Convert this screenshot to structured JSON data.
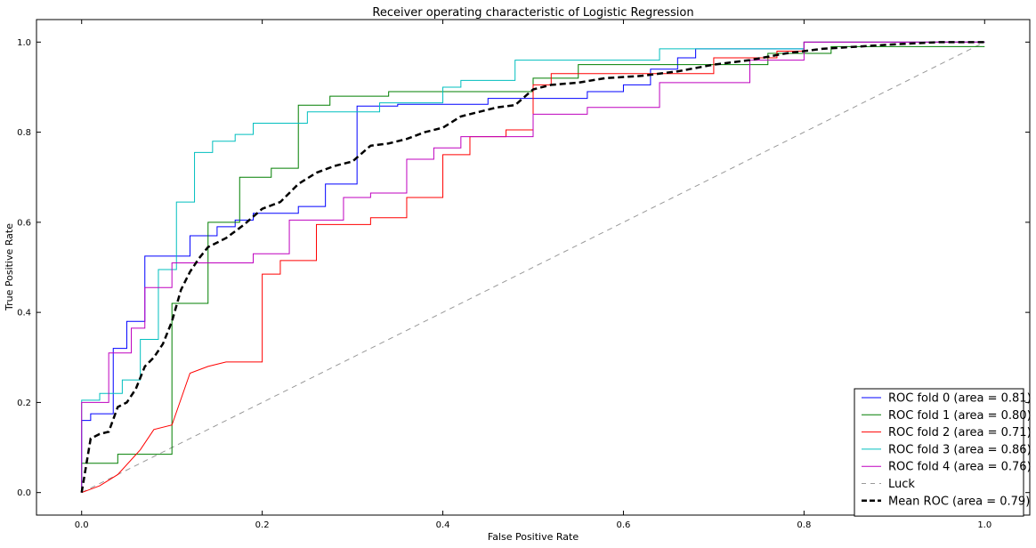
{
  "chart_data": {
    "type": "line",
    "title": "Receiver operating characteristic of Logistic Regression",
    "xlabel": "False Positive Rate",
    "ylabel": "True Positive Rate",
    "xlim": [
      -0.05,
      1.05
    ],
    "ylim": [
      -0.05,
      1.05
    ],
    "x_ticks": [
      "0.0",
      "0.2",
      "0.4",
      "0.6",
      "0.8",
      "1.0"
    ],
    "y_ticks": [
      "0.0",
      "0.2",
      "0.4",
      "0.6",
      "0.8",
      "1.0"
    ],
    "grid": false,
    "legend_position": "lower-right",
    "series": [
      {
        "name": "ROC fold 0 (area = 0.81)",
        "color": "#0000ff",
        "style": "step",
        "x": [
          0,
          0,
          0.01,
          0.01,
          0.02,
          0.02,
          0.035,
          0.035,
          0.05,
          0.05,
          0.07,
          0.07,
          0.12,
          0.12,
          0.15,
          0.15,
          0.17,
          0.17,
          0.19,
          0.19,
          0.24,
          0.24,
          0.27,
          0.27,
          0.305,
          0.305,
          0.35,
          0.35,
          0.45,
          0.45,
          0.56,
          0.56,
          0.6,
          0.6,
          0.63,
          0.63,
          0.66,
          0.66,
          0.68,
          0.68,
          0.77,
          0.77,
          0.8,
          0.8,
          1.0
        ],
        "y": [
          0,
          0.16,
          0.16,
          0.175,
          0.175,
          0.175,
          0.175,
          0.32,
          0.32,
          0.38,
          0.38,
          0.525,
          0.525,
          0.57,
          0.57,
          0.59,
          0.59,
          0.605,
          0.605,
          0.62,
          0.62,
          0.635,
          0.635,
          0.685,
          0.685,
          0.858,
          0.858,
          0.862,
          0.862,
          0.875,
          0.875,
          0.89,
          0.89,
          0.905,
          0.905,
          0.94,
          0.94,
          0.965,
          0.965,
          0.985,
          0.985,
          0.985,
          0.985,
          1.0,
          1.0
        ]
      },
      {
        "name": "ROC fold 1 (area = 0.80)",
        "color": "#007f00",
        "style": "step",
        "x": [
          0,
          0,
          0.04,
          0.04,
          0.07,
          0.07,
          0.1,
          0.1,
          0.14,
          0.14,
          0.175,
          0.175,
          0.21,
          0.21,
          0.24,
          0.24,
          0.275,
          0.275,
          0.34,
          0.34,
          0.5,
          0.5,
          0.55,
          0.55,
          0.7,
          0.7,
          0.76,
          0.76,
          0.83,
          0.83,
          1.0
        ],
        "y": [
          0,
          0.065,
          0.065,
          0.085,
          0.085,
          0.085,
          0.085,
          0.42,
          0.42,
          0.6,
          0.6,
          0.7,
          0.7,
          0.72,
          0.72,
          0.86,
          0.86,
          0.88,
          0.88,
          0.89,
          0.89,
          0.92,
          0.92,
          0.95,
          0.95,
          0.95,
          0.95,
          0.975,
          0.975,
          0.99,
          0.99
        ]
      },
      {
        "name": "ROC fold 2 (area = 0.71)",
        "color": "#ff0000",
        "style": "step",
        "x": [
          0,
          0,
          0.02,
          0.02,
          0.04,
          0.04,
          0.065,
          0.065,
          0.08,
          0.08,
          0.1,
          0.1,
          0.12,
          0.12,
          0.14,
          0.14,
          0.16,
          0.16,
          0.2,
          0.2,
          0.22,
          0.22,
          0.26,
          0.26,
          0.32,
          0.32,
          0.36,
          0.36,
          0.4,
          0.4,
          0.43,
          0.43,
          0.47,
          0.47,
          0.5,
          0.5,
          0.52,
          0.52,
          0.7,
          0.7,
          0.77,
          0.77,
          0.8,
          0.8,
          1.0
        ],
        "y": [
          0,
          0,
          0.015,
          0.015,
          0.04,
          0.04,
          0.095,
          0.095,
          0.14,
          0.14,
          0.15,
          0.15,
          0.265,
          0.265,
          0.28,
          0.28,
          0.29,
          0.29,
          0.29,
          0.485,
          0.485,
          0.515,
          0.515,
          0.595,
          0.595,
          0.61,
          0.61,
          0.655,
          0.655,
          0.75,
          0.75,
          0.79,
          0.79,
          0.805,
          0.805,
          0.905,
          0.905,
          0.93,
          0.93,
          0.965,
          0.965,
          0.98,
          0.98,
          1.0,
          1.0
        ]
      },
      {
        "name": "ROC fold 3 (area = 0.86)",
        "color": "#00bfbf",
        "style": "step",
        "x": [
          0,
          0,
          0.02,
          0.02,
          0.045,
          0.045,
          0.065,
          0.065,
          0.085,
          0.085,
          0.105,
          0.105,
          0.125,
          0.125,
          0.145,
          0.145,
          0.17,
          0.17,
          0.19,
          0.19,
          0.25,
          0.25,
          0.33,
          0.33,
          0.4,
          0.4,
          0.42,
          0.42,
          0.48,
          0.48,
          0.64,
          0.64,
          0.8,
          0.8,
          1.0
        ],
        "y": [
          0,
          0.205,
          0.205,
          0.22,
          0.22,
          0.25,
          0.25,
          0.34,
          0.34,
          0.495,
          0.495,
          0.645,
          0.645,
          0.755,
          0.755,
          0.78,
          0.78,
          0.795,
          0.795,
          0.82,
          0.82,
          0.845,
          0.845,
          0.865,
          0.865,
          0.9,
          0.9,
          0.915,
          0.915,
          0.96,
          0.96,
          0.985,
          0.985,
          1.0,
          1.0
        ]
      },
      {
        "name": "ROC fold 4 (area = 0.76)",
        "color": "#bf00bf",
        "style": "step",
        "x": [
          0,
          0,
          0.03,
          0.03,
          0.055,
          0.055,
          0.07,
          0.07,
          0.1,
          0.1,
          0.13,
          0.13,
          0.19,
          0.19,
          0.23,
          0.23,
          0.29,
          0.29,
          0.32,
          0.32,
          0.36,
          0.36,
          0.39,
          0.39,
          0.42,
          0.42,
          0.5,
          0.5,
          0.56,
          0.56,
          0.64,
          0.64,
          0.74,
          0.74,
          0.8,
          0.8,
          1.0
        ],
        "y": [
          0,
          0.2,
          0.2,
          0.31,
          0.31,
          0.365,
          0.365,
          0.455,
          0.455,
          0.51,
          0.51,
          0.51,
          0.51,
          0.53,
          0.53,
          0.605,
          0.605,
          0.655,
          0.655,
          0.665,
          0.665,
          0.74,
          0.74,
          0.765,
          0.765,
          0.79,
          0.79,
          0.84,
          0.84,
          0.855,
          0.855,
          0.91,
          0.91,
          0.96,
          0.96,
          1.0,
          1.0
        ]
      },
      {
        "name": "Luck",
        "color": "#999999",
        "style": "dashed-thin",
        "x": [
          0,
          1
        ],
        "y": [
          0,
          1
        ]
      },
      {
        "name": "Mean ROC (area = 0.79)",
        "color": "#000000",
        "style": "dashed-thick",
        "x": [
          0,
          0.01,
          0.02,
          0.03,
          0.04,
          0.05,
          0.06,
          0.07,
          0.08,
          0.09,
          0.1,
          0.11,
          0.12,
          0.13,
          0.14,
          0.16,
          0.18,
          0.2,
          0.22,
          0.24,
          0.26,
          0.28,
          0.3,
          0.32,
          0.34,
          0.36,
          0.38,
          0.4,
          0.42,
          0.44,
          0.46,
          0.48,
          0.5,
          0.52,
          0.55,
          0.58,
          0.62,
          0.66,
          0.7,
          0.74,
          0.78,
          0.82,
          0.86,
          0.9,
          0.95,
          1.0
        ],
        "y": [
          0,
          0.12,
          0.13,
          0.135,
          0.19,
          0.2,
          0.23,
          0.28,
          0.3,
          0.33,
          0.38,
          0.45,
          0.49,
          0.52,
          0.545,
          0.565,
          0.595,
          0.63,
          0.645,
          0.685,
          0.71,
          0.725,
          0.735,
          0.77,
          0.775,
          0.785,
          0.8,
          0.81,
          0.835,
          0.845,
          0.855,
          0.86,
          0.895,
          0.905,
          0.91,
          0.92,
          0.925,
          0.935,
          0.95,
          0.96,
          0.975,
          0.985,
          0.99,
          0.995,
          1.0,
          1.0
        ]
      }
    ]
  }
}
